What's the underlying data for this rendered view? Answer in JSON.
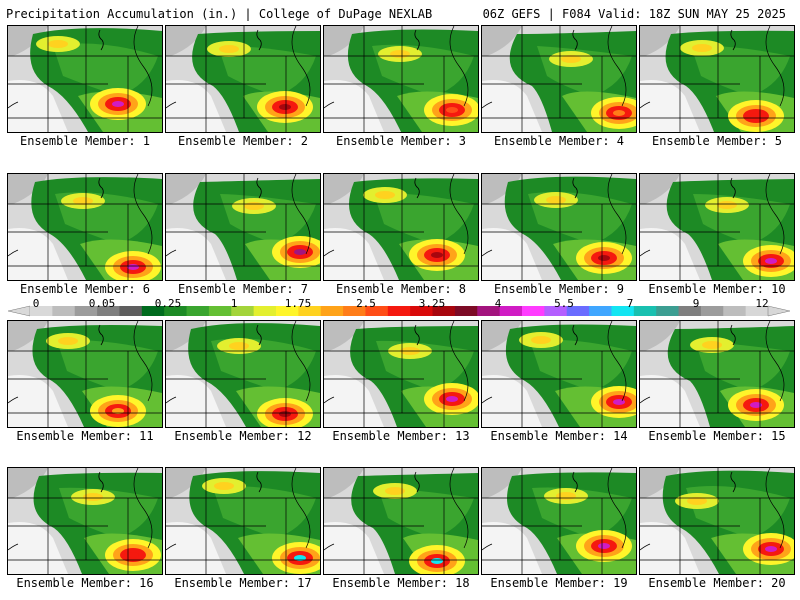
{
  "header": {
    "title_left": "Precipitation Accumulation (in.) | College of DuPage NEXLAB",
    "title_right": "06Z GEFS | F084 Valid: 18Z SUN MAY 25 2025"
  },
  "colorbar": {
    "tick_labels": [
      "0",
      "0.05",
      "0.25",
      "1",
      "1.75",
      "2.5",
      "3.25",
      "4",
      "5.5",
      "7",
      "9",
      "12"
    ],
    "colors": [
      "#d9d9d9",
      "#bdbdbd",
      "#9c9c9c",
      "#7f7f7f",
      "#5e5e5e",
      "#006b1e",
      "#1d8a25",
      "#3aa52f",
      "#64bf33",
      "#a3d43a",
      "#e3ef2f",
      "#fff52a",
      "#ffd21f",
      "#ffa319",
      "#ff7d19",
      "#ff4d17",
      "#f5190f",
      "#d90a0a",
      "#a8060e",
      "#7d0b26",
      "#a3147e",
      "#d01cc4",
      "#ff3cff",
      "#b45fff",
      "#6a6cff",
      "#3fa6ff",
      "#13e5f2",
      "#19c0b0",
      "#3c9e92",
      "#7f7f7f",
      "#9c9c9c",
      "#bdbdbd",
      "#d7d7d7"
    ]
  },
  "members": [
    {
      "label": "Ensemble Member: 1",
      "peak": "#d01cc4"
    },
    {
      "label": "Ensemble Member: 2",
      "peak": "#a8060e"
    },
    {
      "label": "Ensemble Member: 3",
      "peak": "#ff4d17"
    },
    {
      "label": "Ensemble Member: 4",
      "peak": "#ff7d19"
    },
    {
      "label": "Ensemble Member: 5",
      "peak": "#f5190f"
    },
    {
      "label": "Ensemble Member: 6",
      "peak": "#d01cc4"
    },
    {
      "label": "Ensemble Member: 7",
      "peak": "#a3147e"
    },
    {
      "label": "Ensemble Member: 8",
      "peak": "#a8060e"
    },
    {
      "label": "Ensemble Member: 9",
      "peak": "#a8060e"
    },
    {
      "label": "Ensemble Member: 10",
      "peak": "#d01cc4"
    },
    {
      "label": "Ensemble Member: 11",
      "peak": "#ffa319"
    },
    {
      "label": "Ensemble Member: 12",
      "peak": "#a8060e"
    },
    {
      "label": "Ensemble Member: 13",
      "peak": "#d01cc4"
    },
    {
      "label": "Ensemble Member: 14",
      "peak": "#d01cc4"
    },
    {
      "label": "Ensemble Member: 15",
      "peak": "#d01cc4"
    },
    {
      "label": "Ensemble Member: 16",
      "peak": "#f5190f"
    },
    {
      "label": "Ensemble Member: 17",
      "peak": "#13e5f2"
    },
    {
      "label": "Ensemble Member: 18",
      "peak": "#13e5f2"
    },
    {
      "label": "Ensemble Member: 19",
      "peak": "#d01cc4"
    },
    {
      "label": "Ensemble Member: 20",
      "peak": "#d01cc4"
    }
  ]
}
